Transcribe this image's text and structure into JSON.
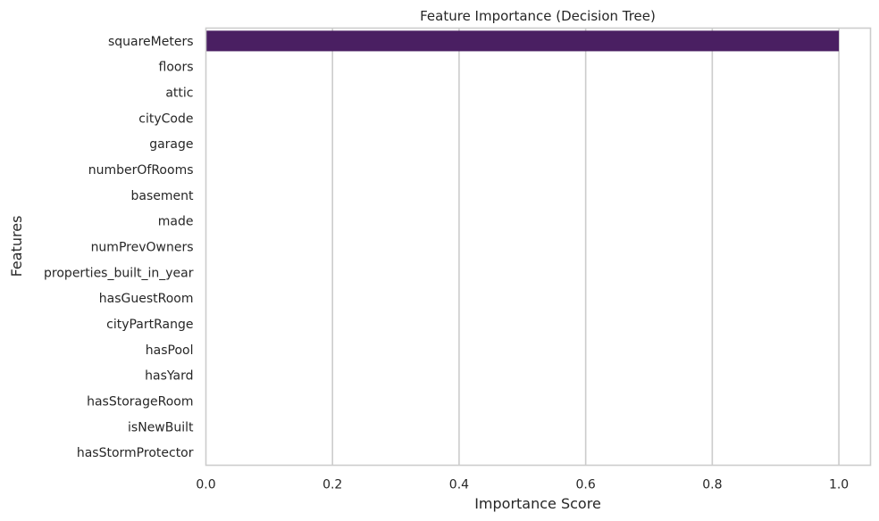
{
  "chart_data": {
    "type": "bar",
    "orientation": "horizontal",
    "title": "Feature Importance (Decision Tree)",
    "xlabel": "Importance Score",
    "ylabel": "Features",
    "xlim": [
      0,
      1.05
    ],
    "xticks": [
      0.0,
      0.2,
      0.4,
      0.6,
      0.8,
      1.0
    ],
    "xtick_labels": [
      "0.0",
      "0.2",
      "0.4",
      "0.6",
      "0.8",
      "1.0"
    ],
    "grid": "vertical",
    "legend": "none",
    "bar_color": "#4a1f62",
    "categories": [
      "squareMeters",
      "floors",
      "attic",
      "cityCode",
      "garage",
      "numberOfRooms",
      "basement",
      "made",
      "numPrevOwners",
      "properties_built_in_year",
      "hasGuestRoom",
      "cityPartRange",
      "hasPool",
      "hasYard",
      "hasStorageRoom",
      "isNewBuilt",
      "hasStormProtector"
    ],
    "values": [
      1.0,
      0.0,
      0.0,
      0.0,
      0.0,
      0.0,
      0.0,
      0.0,
      0.0,
      0.0,
      0.0,
      0.0,
      0.0,
      0.0,
      0.0,
      0.0,
      0.0
    ]
  }
}
